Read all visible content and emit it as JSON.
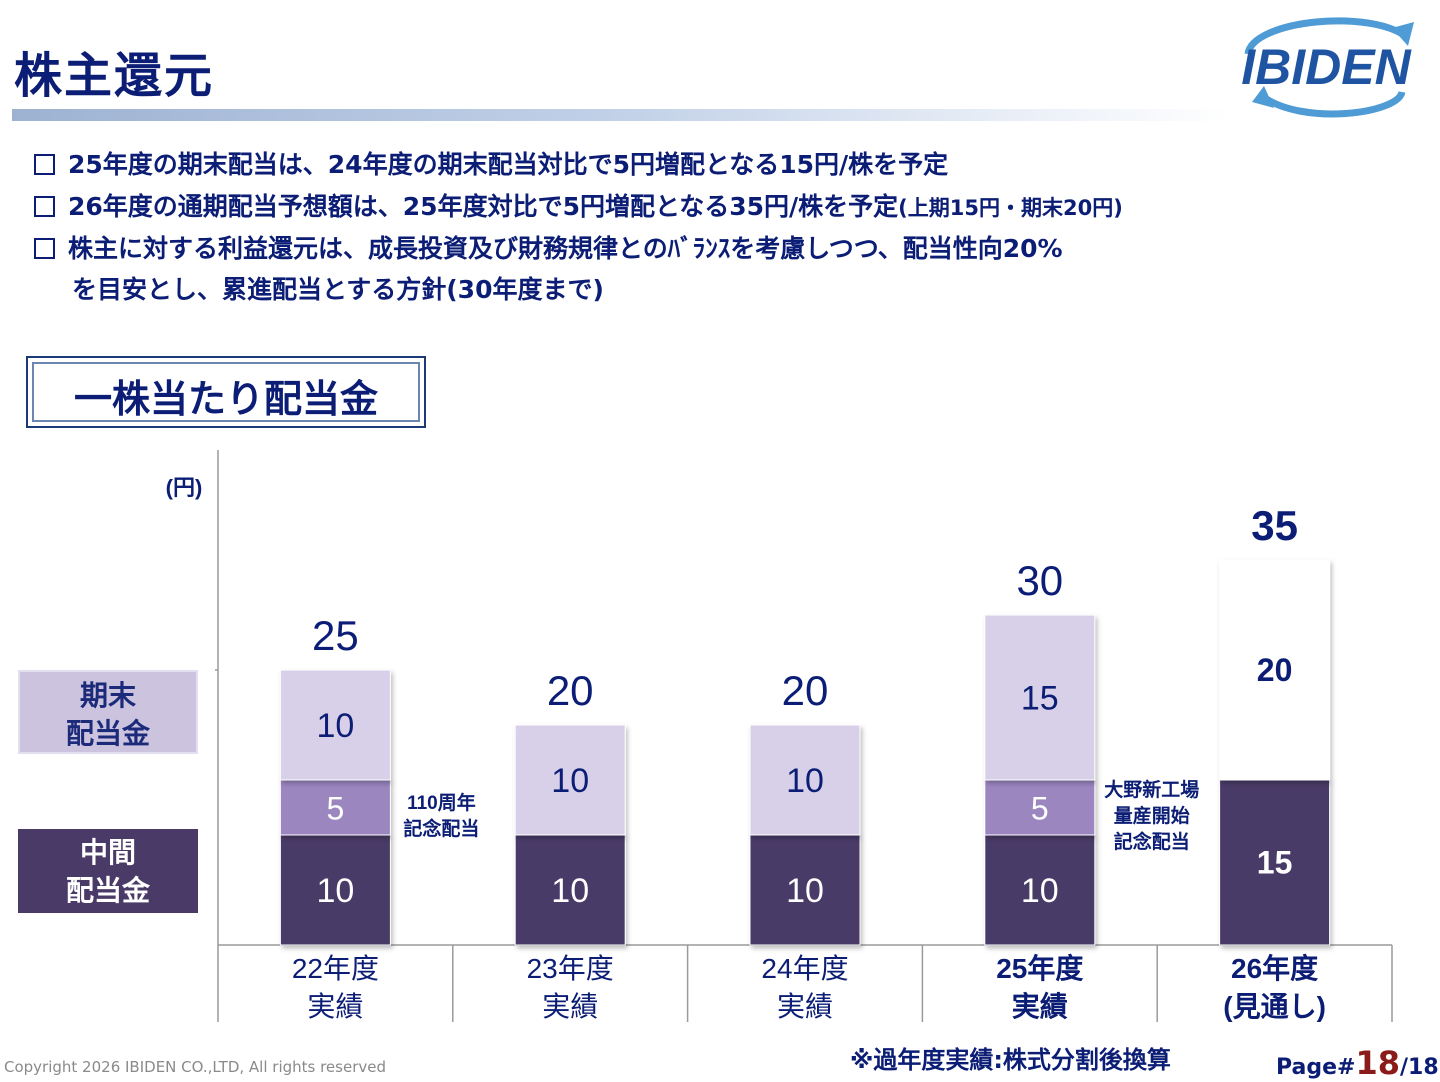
{
  "header": {
    "title": "株主還元",
    "logo_text": "IBIDEN"
  },
  "bullets": [
    {
      "text": "25年度の期末配当は、24年度の期末配当対比で5円増配となる15円/株を予定"
    },
    {
      "text": "26年度の通期配当予想額は、25年度対比で5円増配となる35円/株を予定",
      "small": "(上期15円・期末20円)"
    },
    {
      "text": "株主に対する利益還元は、成長投資及び財務規律とのﾊﾞﾗﾝｽを考慮しつつ、配当性向20%",
      "continuation": "を目安とし、累進配当とする方針(30年度まで)"
    }
  ],
  "section_title": "一株当たり配当金",
  "legend": {
    "final": [
      "期末",
      "配当金"
    ],
    "interim": [
      "中間",
      "配当金"
    ]
  },
  "colors": {
    "title": "#0b1d75",
    "interim": "#4a3a68",
    "commemorative": "#9b86c0",
    "final": "#d8d0e8",
    "forecast_final": "#ffffff",
    "axis": "#9a9a9a"
  },
  "chart_data": {
    "type": "bar",
    "stacked": true,
    "unit_label": "(円)",
    "categories": [
      [
        "22年度",
        "実績"
      ],
      [
        "23年度",
        "実績"
      ],
      [
        "24年度",
        "実績"
      ],
      [
        "25年度",
        "実績"
      ],
      [
        "26年度",
        "(見通し)"
      ]
    ],
    "bold_categories": [
      false,
      false,
      false,
      true,
      true
    ],
    "series": [
      {
        "key": "interim",
        "values": [
          10,
          10,
          10,
          10,
          15
        ]
      },
      {
        "key": "commemorative",
        "values": [
          5,
          0,
          0,
          5,
          0
        ]
      },
      {
        "key": "final",
        "values": [
          10,
          10,
          10,
          15,
          20
        ]
      }
    ],
    "totals": [
      25,
      20,
      20,
      30,
      35
    ],
    "annotations": [
      {
        "category_index": 0,
        "lines": [
          "110周年",
          "記念配当"
        ]
      },
      {
        "category_index": 3,
        "lines": [
          "大野新工場",
          "量産開始",
          "記念配当"
        ]
      }
    ],
    "ylim": [
      0,
      50
    ]
  },
  "footer": {
    "note": "※過年度実績:株式分割後換算",
    "copyright": "Copyright 2026 IBIDEN CO.,LTD, All rights reserved",
    "page_prefix": "Page#",
    "page_current": "18",
    "page_total": "/18"
  }
}
